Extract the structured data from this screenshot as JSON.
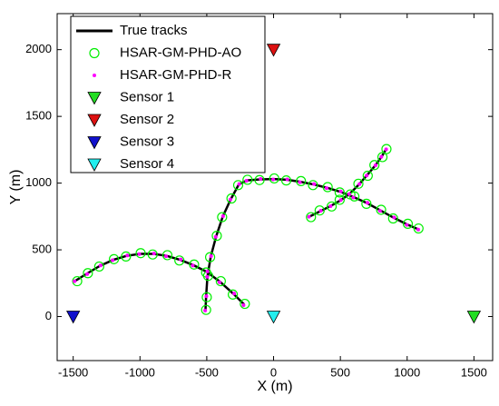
{
  "chart_data": {
    "type": "scatter",
    "xlabel": "X (m)",
    "ylabel": "Y (m)",
    "xlim": [
      -1620,
      1640
    ],
    "ylim": [
      -330,
      2270
    ],
    "xticks": [
      -1500,
      -1000,
      -500,
      0,
      500,
      1000,
      1500
    ],
    "yticks": [
      0,
      500,
      1000,
      1500,
      2000
    ],
    "series": [
      {
        "name": "True tracks",
        "color": "#000000",
        "style": "line",
        "tracks": [
          {
            "x": [
              -1480,
              -1400,
              -1300,
              -1200,
              -1100,
              -1000,
              -900,
              -800,
              -700,
              -600,
              -500,
              -400,
              -300,
              -220
            ],
            "y": [
              270,
              320,
              380,
              425,
              455,
              470,
              470,
              455,
              425,
              385,
              335,
              260,
              170,
              90
            ]
          },
          {
            "x": [
              -510,
              -505,
              -495,
              -470,
              -430,
              -380,
              -320,
              -260,
              -200,
              -100,
              0,
              100,
              200,
              300,
              400,
              500,
              600,
              700,
              800,
              900,
              1000,
              1080
            ],
            "y": [
              40,
              150,
              300,
              450,
              600,
              750,
              880,
              990,
              1020,
              1028,
              1030,
              1025,
              1010,
              990,
              965,
              935,
              895,
              850,
              795,
              740,
              690,
              655
            ]
          },
          {
            "x": [
              270,
              350,
              430,
              500,
              570,
              640,
              700,
              760,
              810,
              840
            ],
            "y": [
              750,
              790,
              830,
              870,
              920,
              990,
              1060,
              1130,
              1200,
              1250
            ]
          }
        ]
      },
      {
        "name": "HSAR-GM-PHD-AO",
        "color": "#00ee00",
        "style": "circle",
        "tracks": [
          {
            "x": [
              -1470,
              -1390,
              -1305,
              -1195,
              -1105,
              -995,
              -905,
              -795,
              -705,
              -595,
              -505,
              -395,
              -305,
              -215
            ],
            "y": [
              265,
              325,
              375,
              430,
              450,
              475,
              465,
              460,
              420,
              390,
              330,
              265,
              165,
              95
            ]
          },
          {
            "x": [
              -505,
              -500,
              -490,
              -475,
              -425,
              -385,
              -315,
              -265,
              -195,
              -105,
              5,
              95,
              205,
              295,
              405,
              495,
              605,
              695,
              805,
              895,
              1005,
              1085
            ],
            "y": [
              50,
              145,
              305,
              445,
              605,
              745,
              885,
              985,
              1025,
              1023,
              1035,
              1020,
              1015,
              985,
              970,
              930,
              900,
              845,
              800,
              735,
              695,
              660
            ]
          },
          {
            "x": [
              280,
              345,
              435,
              495,
              575,
              635,
              705,
              755,
              815,
              845
            ],
            "y": [
              745,
              795,
              825,
              875,
              915,
              995,
              1055,
              1135,
              1195,
              1255
            ]
          }
        ]
      },
      {
        "name": "HSAR-GM-PHD-R",
        "color": "#ff00ff",
        "style": "dot",
        "tracks": [
          {
            "x": [
              -1490,
              -1395,
              -1295,
              -1205,
              -1095,
              -1005,
              -895,
              -805,
              -695,
              -605,
              -495,
              -405,
              -295,
              -225
            ],
            "y": [
              265,
              318,
              383,
              422,
              458,
              468,
              472,
              452,
              428,
              382,
              338,
              257,
              173,
              85
            ]
          },
          {
            "x": [
              -512,
              -503,
              -497,
              -468,
              -433,
              -378,
              -323,
              -257,
              -203,
              -97,
              -3,
              103,
              197,
              303,
              397,
              503,
              597,
              703,
              797,
              903,
              997,
              1083
            ],
            "y": [
              45,
              152,
              298,
              453,
              597,
              752,
              877,
              993,
              1018,
              1031,
              1027,
              1028,
              1007,
              993,
              962,
              938,
              892,
              853,
              792,
              743,
              687,
              652
            ]
          },
          {
            "x": [
              265,
              353,
              427,
              503,
              567,
              643,
              697,
              763,
              807,
              843
            ],
            "y": [
              748,
              793,
              827,
              873,
              917,
              993,
              1057,
              1133,
              1197,
              1253
            ]
          }
        ]
      },
      {
        "name": "Sensor 1",
        "color": "#22dd22",
        "style": "triangle",
        "tracks": [
          {
            "x": [
              1500
            ],
            "y": [
              0
            ]
          }
        ]
      },
      {
        "name": "Sensor 2",
        "color": "#dd1111",
        "style": "triangle",
        "tracks": [
          {
            "x": [
              0
            ],
            "y": [
              2000
            ]
          }
        ]
      },
      {
        "name": "Sensor 3",
        "color": "#1111cc",
        "style": "triangle",
        "tracks": [
          {
            "x": [
              -1500
            ],
            "y": [
              0
            ]
          }
        ]
      },
      {
        "name": "Sensor 4",
        "color": "#22eeee",
        "style": "triangle",
        "tracks": [
          {
            "x": [
              0
            ],
            "y": [
              0
            ]
          }
        ]
      }
    ]
  }
}
